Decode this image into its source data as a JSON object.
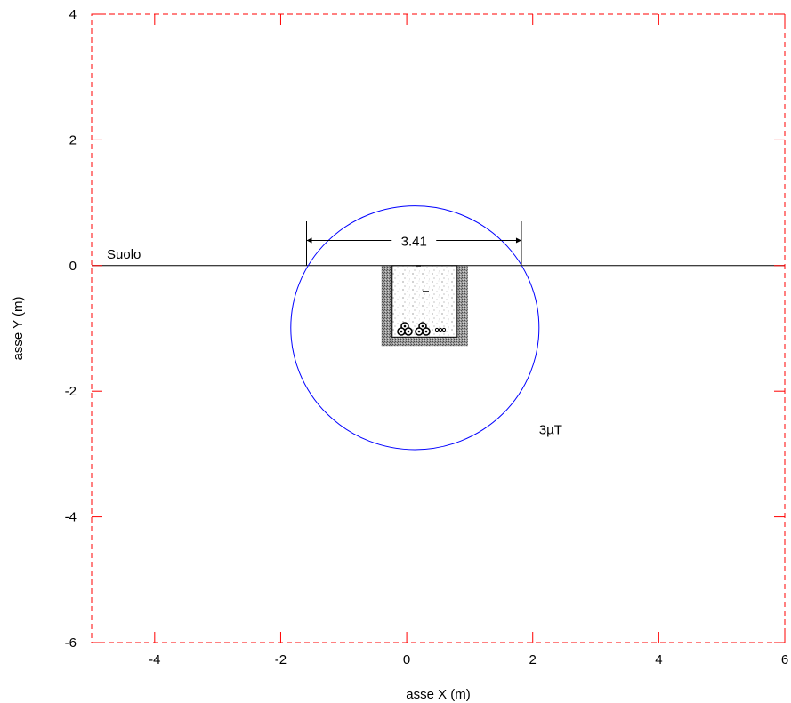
{
  "chart_data": {
    "type": "diagram",
    "xlabel": "asse X (m)",
    "ylabel": "asse Y (m)",
    "xlim": [
      -5,
      6
    ],
    "ylim": [
      -6,
      4
    ],
    "x_ticks": [
      -4,
      -2,
      0,
      2,
      4,
      6
    ],
    "y_ticks": [
      -6,
      -4,
      -2,
      0,
      2,
      4
    ],
    "grid": false,
    "frame_color": "#ff0000",
    "ground": {
      "label": "Suolo",
      "y": 0,
      "color": "#000000"
    },
    "contour": {
      "label": "3µT",
      "center_x": 0.13,
      "center_y": -0.99,
      "radius_x": 1.97,
      "radius_y": 1.94,
      "color": "#0000ff"
    },
    "dimension": {
      "label": "3.41",
      "x_start": -1.59,
      "x_end": 1.82,
      "y": 0.5
    },
    "trench": {
      "x_start": -0.4,
      "x_end": 0.97,
      "y_top": 0,
      "y_bottom": -1.28
    }
  }
}
